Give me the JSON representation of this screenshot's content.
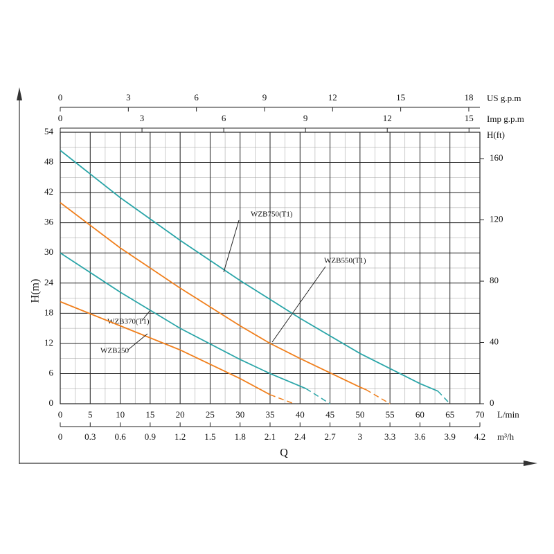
{
  "chart_data": {
    "type": "line",
    "x_label": "Q",
    "x_unit": "L/min",
    "y_label": "H(m)",
    "y2_label": "H(ft)",
    "xlim": [
      0,
      70
    ],
    "xticks": [
      0,
      5,
      10,
      15,
      20,
      25,
      30,
      35,
      40,
      45,
      50,
      55,
      60,
      65,
      70
    ],
    "ylim": [
      0,
      54
    ],
    "yticks": [
      0,
      6,
      12,
      18,
      24,
      30,
      36,
      42,
      48,
      54
    ],
    "y2lim": [
      0,
      177.2
    ],
    "y2ticks": [
      0,
      40,
      80,
      120,
      160
    ],
    "grid": true,
    "extra_x_axes": [
      {
        "label": "m³/h",
        "position": "bottom",
        "xlim": [
          0,
          4.2
        ],
        "xticks": [
          0,
          0.3,
          0.6,
          0.9,
          1.2,
          1.5,
          1.8,
          2.1,
          2.4,
          2.7,
          3,
          3.3,
          3.6,
          3.9,
          4.2
        ]
      },
      {
        "label": "US g.p.m",
        "position": "top",
        "xlim": [
          0,
          18.49
        ],
        "xticks": [
          0,
          3,
          6,
          9,
          12,
          15,
          18
        ]
      },
      {
        "label": "Imp g.p.m",
        "position": "top",
        "xlim": [
          0,
          15.4
        ],
        "xticks": [
          0,
          3,
          6,
          9,
          12,
          15
        ]
      }
    ],
    "series": [
      {
        "name": "WZB750(T1)",
        "color": "#2aa5a8",
        "x": [
          0,
          10,
          20,
          30,
          40,
          50,
          60,
          63
        ],
        "values": [
          50.4,
          41,
          32.5,
          24.5,
          17,
          10,
          4,
          2.5
        ],
        "extension_x": [
          65
        ],
        "extension_values": [
          0
        ]
      },
      {
        "name": "WZB550(T1)",
        "color": "#f07f1c",
        "x": [
          0,
          10,
          20,
          30,
          35,
          40,
          50,
          51
        ],
        "values": [
          40,
          31,
          23,
          15.5,
          12,
          9,
          3.3,
          2.8
        ],
        "extension_x": [
          55
        ],
        "extension_values": [
          0
        ]
      },
      {
        "name": "WZB370(T1)",
        "color": "#2aa5a8",
        "x": [
          0,
          10,
          20,
          30,
          35,
          40,
          41
        ],
        "values": [
          30,
          22.2,
          15,
          8.8,
          6,
          3.5,
          3
        ],
        "extension_x": [
          45
        ],
        "extension_values": [
          0
        ]
      },
      {
        "name": "WZB250",
        "color": "#f07f1c",
        "x": [
          0,
          10,
          20,
          30,
          35
        ],
        "values": [
          20.3,
          15.5,
          10.7,
          5,
          1.8
        ],
        "extension_x": [
          39
        ],
        "extension_values": [
          0
        ]
      }
    ]
  }
}
